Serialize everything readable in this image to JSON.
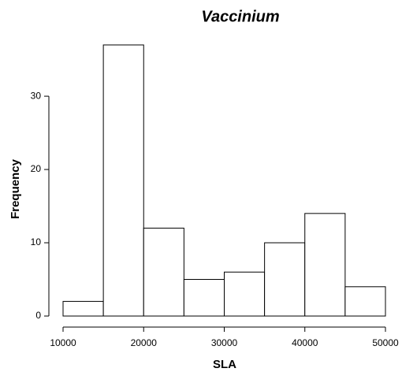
{
  "chart_data": {
    "type": "histogram",
    "title": "Vaccinium",
    "xlabel": "SLA",
    "ylabel": "Frequency",
    "bins": [
      10000,
      15000,
      20000,
      25000,
      30000,
      35000,
      40000,
      45000,
      50000
    ],
    "values": [
      2,
      37,
      12,
      5,
      6,
      10,
      14,
      4
    ],
    "color": "#ffffff",
    "xlim": [
      10000,
      50000
    ],
    "xticks": [
      10000,
      20000,
      30000,
      40000,
      50000
    ],
    "ylim": [
      0,
      37
    ],
    "yticks": [
      0,
      10,
      20,
      30
    ],
    "grid": false
  }
}
